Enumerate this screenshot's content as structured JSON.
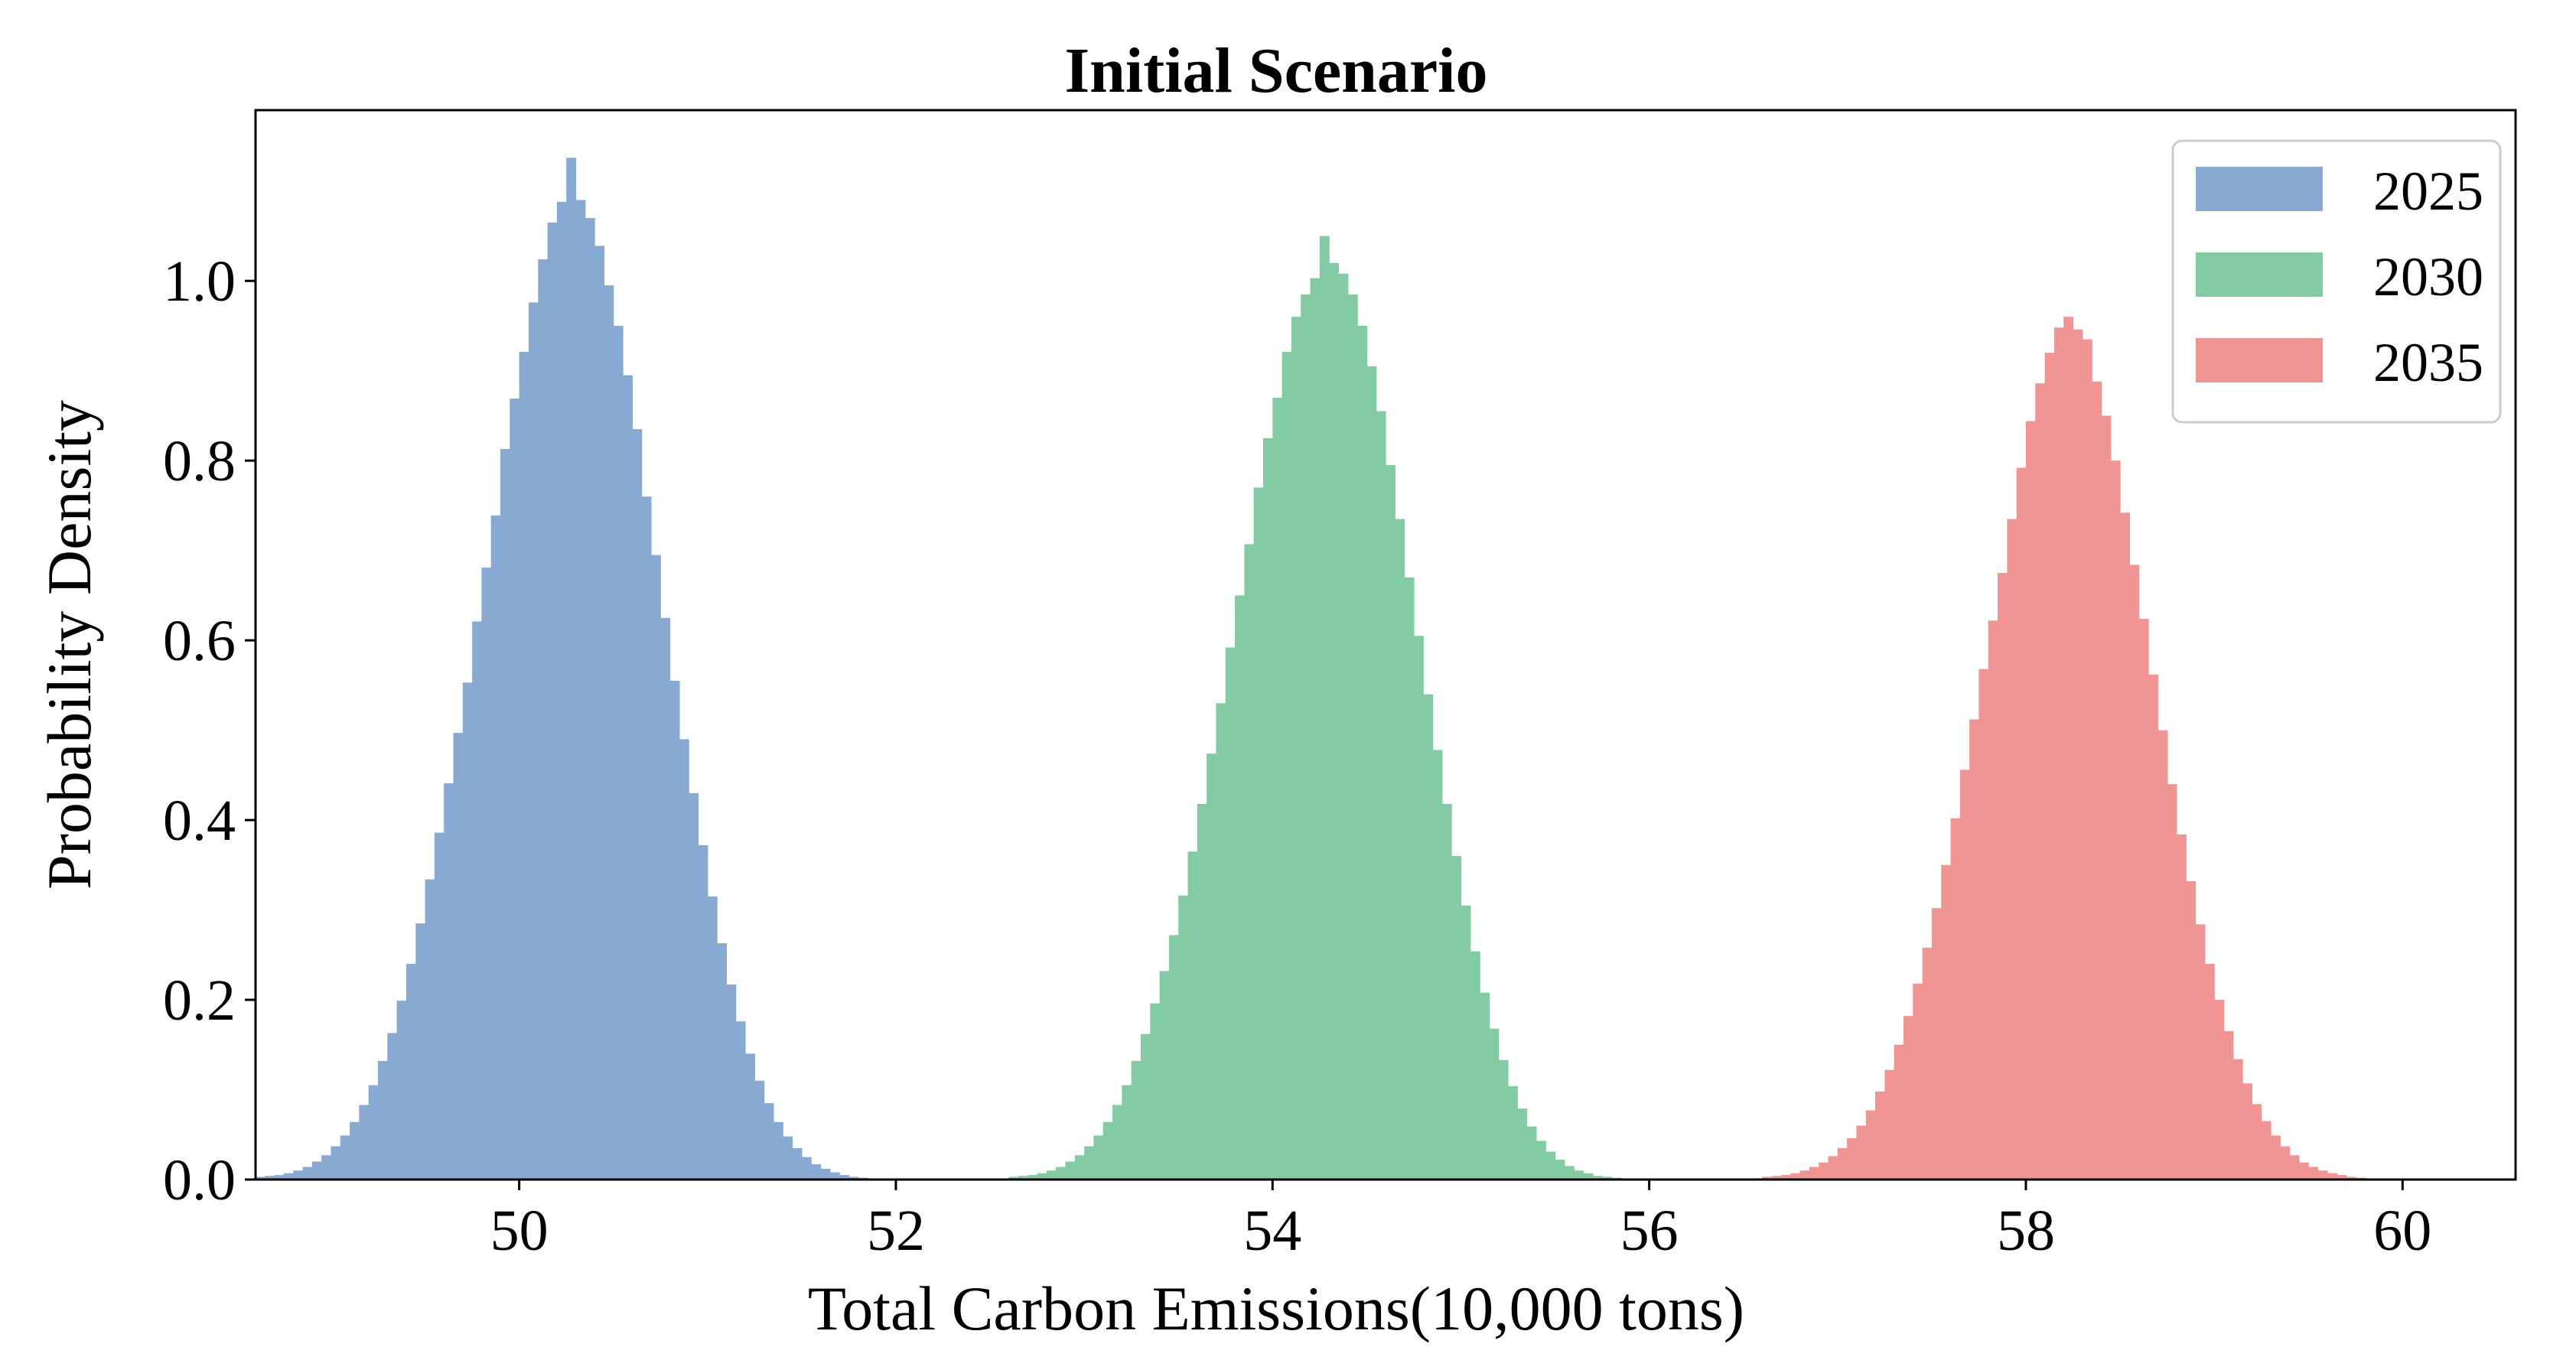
{
  "chart_data": {
    "type": "histogram",
    "title": "Initial Scenario",
    "xlabel": "Total Carbon Emissions(10,000 tons)",
    "ylabel": "Probability Density",
    "xlim": [
      48.6,
      60.6
    ],
    "ylim": [
      0.0,
      1.19
    ],
    "xticks": [
      50,
      52,
      54,
      56,
      58,
      60
    ],
    "yticks": [
      0.0,
      0.2,
      0.4,
      0.6,
      0.8,
      1.0
    ],
    "xtick_labels": [
      "50",
      "52",
      "54",
      "56",
      "58",
      "60"
    ],
    "ytick_labels": [
      "0.0",
      "0.2",
      "0.4",
      "0.6",
      "0.8",
      "1.0"
    ],
    "grid": false,
    "legend_position": "top-right",
    "series": [
      {
        "name": "2025",
        "color": "#88aad2",
        "bin_start": 48.6,
        "bin_width": 0.05,
        "density": [
          0.003,
          0.004,
          0.005,
          0.007,
          0.01,
          0.014,
          0.02,
          0.027,
          0.037,
          0.049,
          0.064,
          0.083,
          0.105,
          0.132,
          0.163,
          0.199,
          0.24,
          0.285,
          0.334,
          0.386,
          0.441,
          0.497,
          0.553,
          0.621,
          0.681,
          0.739,
          0.813,
          0.869,
          0.921,
          0.976,
          1.024,
          1.065,
          1.088,
          1.137,
          1.09,
          1.07,
          1.039,
          0.995,
          0.95,
          0.895,
          0.835,
          0.76,
          0.695,
          0.625,
          0.555,
          0.49,
          0.43,
          0.372,
          0.315,
          0.263,
          0.217,
          0.176,
          0.14,
          0.11,
          0.085,
          0.064,
          0.048,
          0.035,
          0.025,
          0.017,
          0.012,
          0.008,
          0.005,
          0.003,
          0.002,
          0.001
        ]
      },
      {
        "name": "2030",
        "color": "#82cba3",
        "bin_start": 52.6,
        "bin_width": 0.05,
        "density": [
          0.003,
          0.004,
          0.005,
          0.007,
          0.01,
          0.014,
          0.02,
          0.027,
          0.037,
          0.049,
          0.064,
          0.083,
          0.105,
          0.132,
          0.162,
          0.196,
          0.232,
          0.272,
          0.316,
          0.365,
          0.418,
          0.474,
          0.53,
          0.592,
          0.65,
          0.707,
          0.77,
          0.825,
          0.87,
          0.921,
          0.96,
          0.985,
          1.003,
          1.05,
          1.02,
          1.008,
          0.985,
          0.95,
          0.905,
          0.855,
          0.795,
          0.735,
          0.67,
          0.605,
          0.54,
          0.478,
          0.418,
          0.36,
          0.305,
          0.254,
          0.208,
          0.168,
          0.133,
          0.104,
          0.079,
          0.059,
          0.043,
          0.031,
          0.022,
          0.015,
          0.01,
          0.007,
          0.004,
          0.003,
          0.002,
          0.001
        ]
      },
      {
        "name": "2035",
        "color": "#f09494",
        "bin_start": 56.6,
        "bin_width": 0.05,
        "density": [
          0.003,
          0.004,
          0.005,
          0.007,
          0.01,
          0.014,
          0.019,
          0.026,
          0.035,
          0.046,
          0.06,
          0.077,
          0.098,
          0.122,
          0.15,
          0.182,
          0.218,
          0.258,
          0.302,
          0.35,
          0.402,
          0.456,
          0.512,
          0.568,
          0.622,
          0.675,
          0.735,
          0.792,
          0.844,
          0.886,
          0.92,
          0.948,
          0.96,
          0.946,
          0.935,
          0.888,
          0.85,
          0.8,
          0.742,
          0.684,
          0.624,
          0.562,
          0.5,
          0.44,
          0.384,
          0.332,
          0.284,
          0.24,
          0.2,
          0.165,
          0.134,
          0.107,
          0.084,
          0.065,
          0.049,
          0.037,
          0.027,
          0.019,
          0.014,
          0.01,
          0.007,
          0.005,
          0.003,
          0.002,
          0.001,
          0.001
        ]
      }
    ]
  }
}
